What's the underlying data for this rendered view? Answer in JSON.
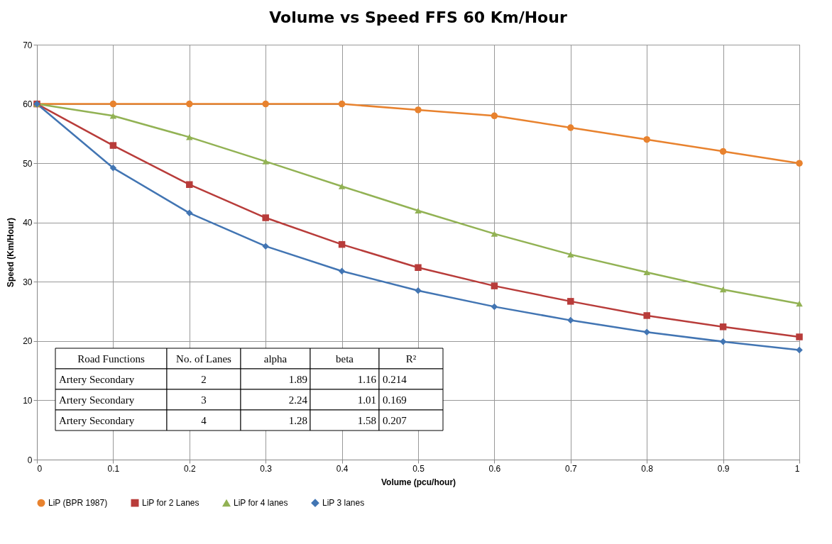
{
  "chart_data": {
    "type": "line",
    "title": "Volume vs Speed FFS 60 Km/Hour",
    "xlabel": "Volume (pcu/hour)",
    "ylabel": "Speed (Km/Hour)",
    "x": [
      0,
      0.1,
      0.2,
      0.3,
      0.4,
      0.5,
      0.6,
      0.7,
      0.8,
      0.9,
      1
    ],
    "series": [
      {
        "name": "LiP (BPR 1987)",
        "color": "#e8822e",
        "marker": "circle",
        "values": [
          60,
          60,
          60,
          60,
          60,
          59,
          58,
          56,
          54,
          52,
          50
        ]
      },
      {
        "name": "LiP for 2 Lanes",
        "color": "#b83c3a",
        "marker": "square",
        "values": [
          60,
          53,
          46.4,
          40.8,
          36.3,
          32.4,
          29.3,
          26.7,
          24.3,
          22.4,
          20.7
        ]
      },
      {
        "name": "LiP for 4 lanes",
        "color": "#92b254",
        "marker": "triangle",
        "values": [
          60,
          58,
          54.4,
          50.3,
          46.1,
          42,
          38.1,
          34.6,
          31.6,
          28.7,
          26.3
        ]
      },
      {
        "name": "LiP 3  lanes",
        "color": "#4275b3",
        "marker": "diamond",
        "values": [
          60,
          49.2,
          41.6,
          36,
          31.8,
          28.5,
          25.8,
          23.5,
          21.5,
          19.9,
          18.5
        ]
      }
    ],
    "xlim": [
      0,
      1
    ],
    "xticks": [
      0,
      0.1,
      0.2,
      0.3,
      0.4,
      0.5,
      0.6,
      0.7,
      0.8,
      0.9,
      1
    ],
    "ylim": [
      0,
      70
    ],
    "yticks": [
      0,
      10,
      20,
      30,
      40,
      50,
      60,
      70
    ],
    "grid": true,
    "legend": "bottom",
    "line_style": "solid",
    "annotations": [
      "Road Functions",
      "No. of Lanes",
      "alpha",
      "beta",
      "R²",
      "Artery Secondary",
      "2",
      "1.89",
      "1.16",
      "0.214",
      "Artery Secondary",
      "3",
      "2.24",
      "1.01",
      "0.169",
      "Artery Secondary",
      "4",
      "1.28",
      "1.58",
      "0.207"
    ]
  }
}
